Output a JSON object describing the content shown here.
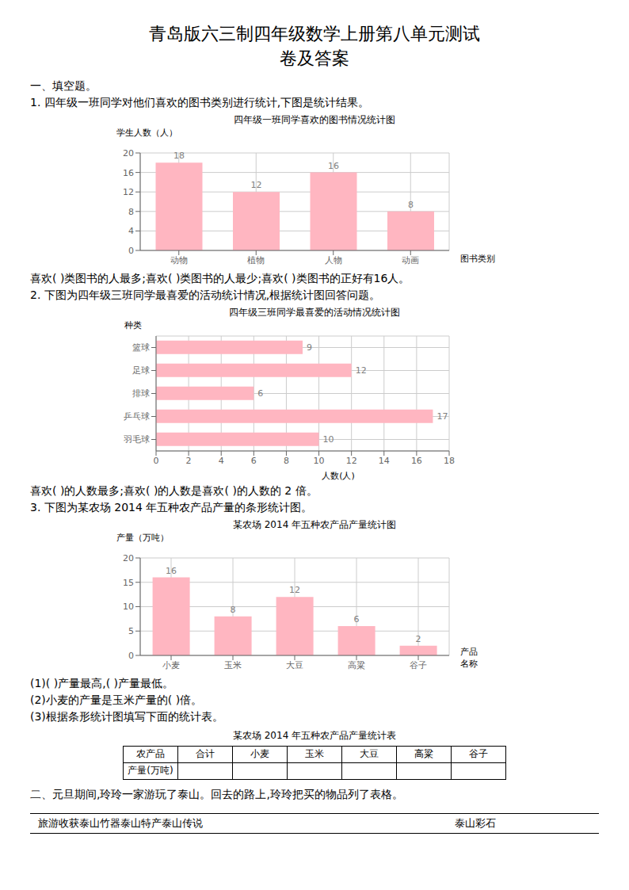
{
  "title": "青岛版六三制四年级数学上册第八单元测试\n卷及答案",
  "annotations": {
    "section1": "一、填空题。",
    "section2": "二、元旦期间,玲玲一家游玩了泰山。回去的路上,玲玲把买的物品列了表格。"
  },
  "chart_data": [
    {
      "type": "bar",
      "question": "1. 四年级一班同学对他们喜欢的图书类别进行统计,下图是统计结果。",
      "title": "四年级一班同学喜欢的图书情况统计图",
      "ylabel": "学生人数（人）",
      "xlabel": "图书类别",
      "categories": [
        "动物",
        "植物",
        "人物",
        "动画"
      ],
      "values": [
        18,
        12,
        16,
        8
      ],
      "color": "#FFB6C1",
      "ylim": [
        0,
        20
      ],
      "yticks": [
        0,
        4,
        8,
        12,
        16,
        20
      ],
      "grid": true,
      "data_labels": true,
      "answers": [
        "喜欢(    )类图书的人最多;喜欢(    )类图书的人最少;喜欢(    )类图书的正好有16人。"
      ]
    },
    {
      "type": "bar",
      "orientation": "horizontal",
      "question": "2. 下图为四年级三班同学最喜爱的活动统计情况,根据统计图回答问题。",
      "title": "四年级三班同学最喜爱的活动情况统计图",
      "ylabel": "种类",
      "xlabel": "人数(人)",
      "categories": [
        "篮球",
        "足球",
        "排球",
        "乒乓球",
        "羽毛球"
      ],
      "values": [
        9,
        12,
        6,
        17,
        10
      ],
      "color": "#FFB6C1",
      "xlim": [
        0,
        18
      ],
      "xticks": [
        0,
        2,
        4,
        6,
        8,
        10,
        12,
        14,
        16,
        18
      ],
      "grid": true,
      "data_labels": true,
      "answers": [
        "喜欢(    )的人数最多;喜欢(    )的人数是喜欢(    )的人数的 2 倍。"
      ]
    },
    {
      "type": "bar",
      "question": "3. 下图为某农场 2014 年五种农产品产量的条形统计图。",
      "title": "某农场 2014 年五种农产品产量统计图",
      "ylabel": "产量（万吨）",
      "xlabel": "产品\n名称",
      "categories": [
        "小麦",
        "玉米",
        "大豆",
        "高粱",
        "谷子"
      ],
      "values": [
        16,
        8,
        12,
        6,
        2
      ],
      "color": "#FFB6C1",
      "ylim": [
        0,
        20
      ],
      "yticks": [
        0,
        5,
        10,
        15,
        20
      ],
      "grid": true,
      "data_labels": true,
      "answers": [
        "(1)(    )产量最高,(    )产量最低。",
        "(2)小麦的产量是玉米产量的(    )倍。",
        "(3)根据条形统计图填写下面的统计表。"
      ]
    }
  ],
  "table": {
    "title": "某农场 2014 年五种农产品产量统计表",
    "header": [
      "农产品",
      "合计",
      "小麦",
      "玉米",
      "大豆",
      "高粱",
      "谷子"
    ],
    "rows": [
      [
        "产量(万吨)"
      ]
    ]
  },
  "last_row": [
    "旅游收获泰山竹器泰山特产泰山传说",
    "泰山彩石"
  ]
}
